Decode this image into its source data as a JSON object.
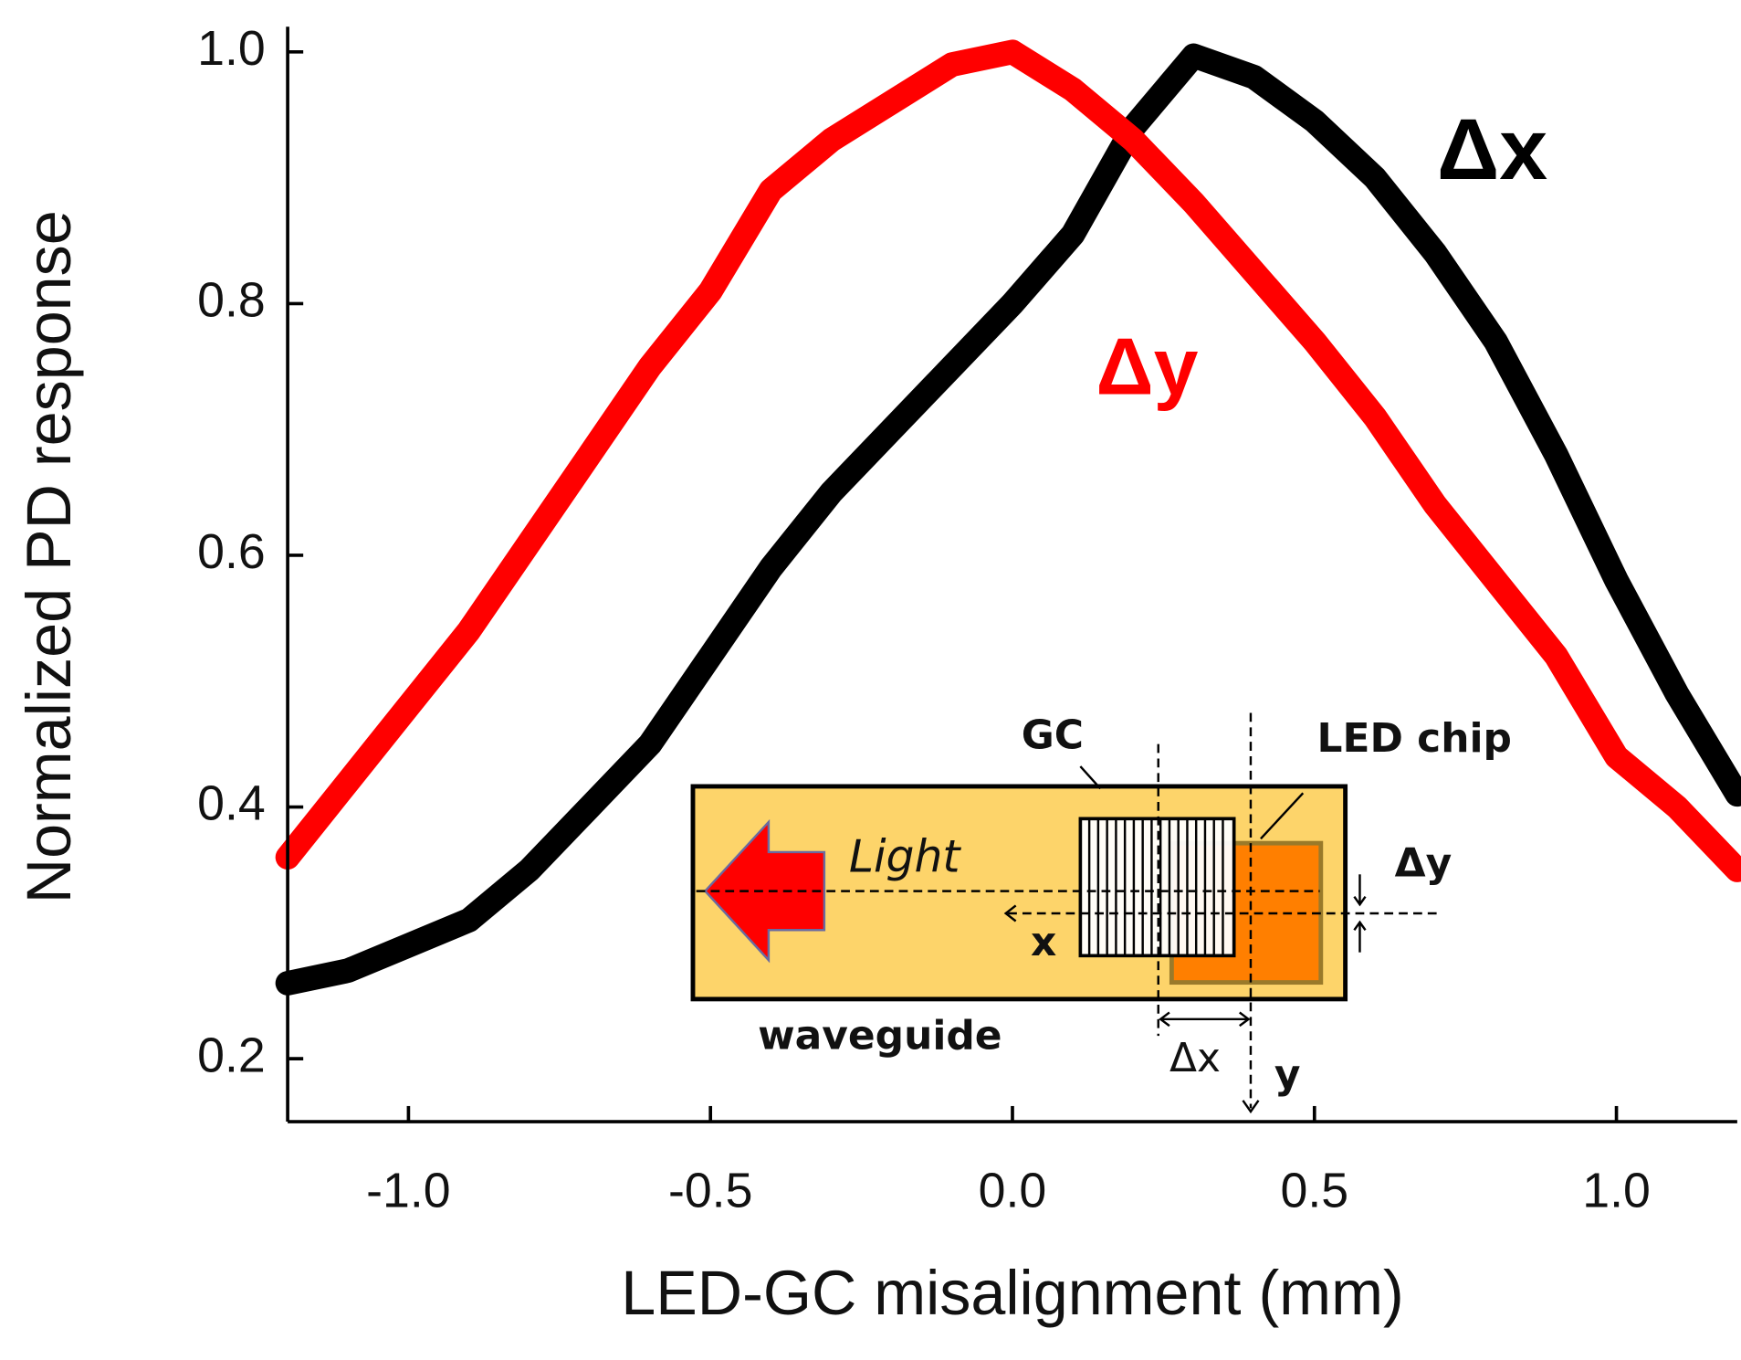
{
  "chart_data": {
    "type": "line",
    "x_label": "LED-GC misalignment (mm)",
    "y_label": "Normalized PD response",
    "x": [
      -1.2,
      -1.1,
      -1.0,
      -0.9,
      -0.8,
      -0.7,
      -0.6,
      -0.5,
      -0.4,
      -0.3,
      -0.2,
      -0.1,
      0.0,
      0.1,
      0.2,
      0.3,
      0.4,
      0.5,
      0.6,
      0.7,
      0.8,
      0.9,
      1.0,
      1.1,
      1.2
    ],
    "series": [
      {
        "name": "Δx",
        "color": "#000000",
        "values": [
          0.26,
          0.27,
          0.29,
          0.31,
          0.35,
          0.4,
          0.45,
          0.52,
          0.59,
          0.65,
          0.7,
          0.75,
          0.8,
          0.855,
          0.94,
          0.997,
          0.98,
          0.945,
          0.9,
          0.84,
          0.77,
          0.68,
          0.58,
          0.49,
          0.41
        ]
      },
      {
        "name": "Δy",
        "color": "#ff0000",
        "values": [
          0.36,
          0.42,
          0.48,
          0.54,
          0.61,
          0.68,
          0.75,
          0.81,
          0.89,
          0.93,
          0.96,
          0.99,
          1.0,
          0.97,
          0.93,
          0.88,
          0.825,
          0.77,
          0.71,
          0.64,
          0.58,
          0.52,
          0.44,
          0.4,
          0.35
        ]
      }
    ],
    "xlim": [
      -1.2,
      1.2
    ],
    "ylim": [
      0.15,
      1.02
    ],
    "xticks": [
      {
        "value": -1,
        "label": "-1.0"
      },
      -0.5,
      {
        "value": 0,
        "label": "0.0"
      },
      0.5,
      {
        "value": 1,
        "label": "1.0"
      }
    ],
    "yticks": [
      0.2,
      0.4,
      0.6,
      0.8,
      {
        "value": 1,
        "label": "1.0"
      }
    ],
    "inset": {
      "gc": "GC",
      "led": "LED chip",
      "light": "Light",
      "x": "x",
      "dy": "Δy",
      "dx": "Δx",
      "y": "y",
      "waveguide": "waveguide"
    }
  }
}
